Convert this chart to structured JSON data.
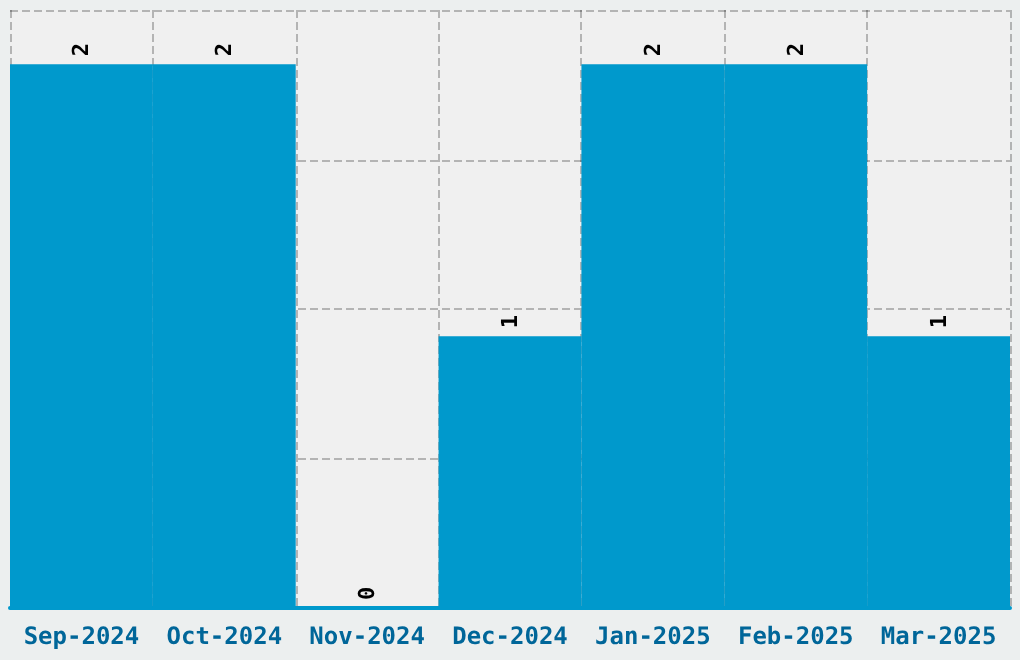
{
  "chart_data": {
    "type": "bar",
    "categories": [
      "Sep-2024",
      "Oct-2024",
      "Nov-2024",
      "Dec-2024",
      "Jan-2025",
      "Feb-2025",
      "Mar-2025"
    ],
    "values": [
      2,
      2,
      0,
      1,
      2,
      2,
      1
    ],
    "color": "#0099cc",
    "ylim": [
      0,
      2.2
    ],
    "yticks": [
      {
        "value": 0,
        "label": null
      },
      {
        "value": 0.55,
        "label": null
      },
      {
        "value": 1.1,
        "label": null
      },
      {
        "value": 1.65,
        "label": null
      },
      {
        "value": 2.2,
        "label": null
      }
    ],
    "tick_labels": "x",
    "grid": true,
    "data_labels": true
  }
}
